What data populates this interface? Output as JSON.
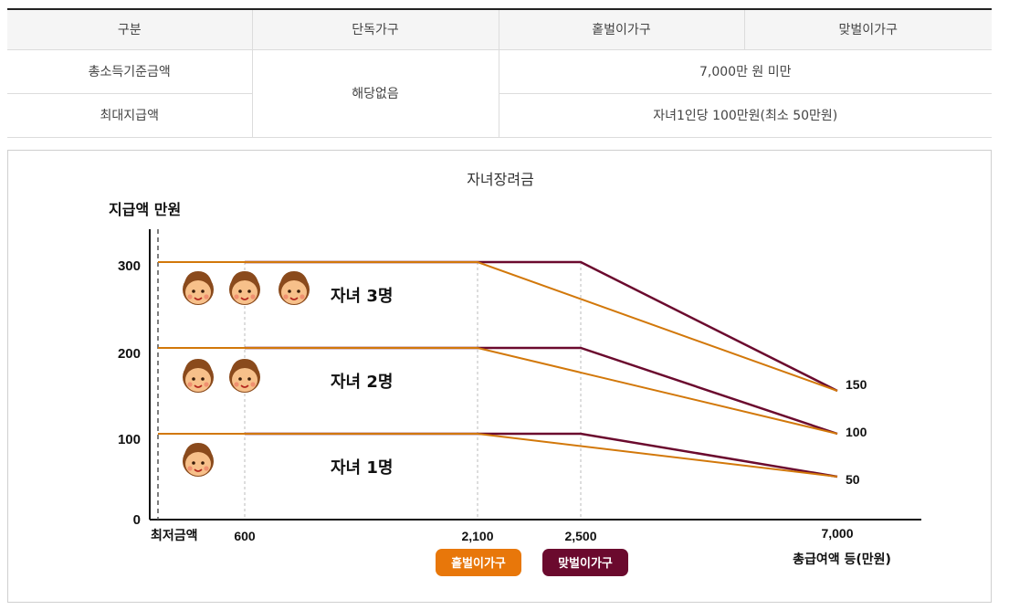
{
  "table": {
    "headers": [
      "구분",
      "단독가구",
      "홑벌이가구",
      "맞벌이가구"
    ],
    "rows": [
      {
        "label": "총소득기준금액",
        "single": "해당없음",
        "value": "7,000만 원 미만"
      },
      {
        "label": "최대지급액",
        "value": "자녀1인당 100만원(최소 50만원)"
      }
    ]
  },
  "chart_data": {
    "type": "line",
    "title": "자녀장려금",
    "ylabel": "지급액 만원",
    "xlabel": "총급여액 등(만원)",
    "y_ticks": [
      "0",
      "100",
      "200",
      "300"
    ],
    "x_ticks": [
      "최저금액",
      "600",
      "2,100",
      "2,500",
      "7,000"
    ],
    "right_ticks": [
      "150",
      "100",
      "50"
    ],
    "legend": [
      "홑벌이가구",
      "맞벌이가구"
    ],
    "tier_labels": [
      "자녀 3명",
      "자녀 2명",
      "자녀 1명"
    ],
    "series": [
      {
        "name": "홑벌이가구",
        "color": "#d2780a",
        "points": [
          {
            "tier": "자녀 3명",
            "x": [
              0,
              2100,
              7000
            ],
            "y": [
              300,
              300,
              150
            ]
          },
          {
            "tier": "자녀 2명",
            "x": [
              0,
              2100,
              7000
            ],
            "y": [
              200,
              200,
              100
            ]
          },
          {
            "tier": "자녀 1명",
            "x": [
              0,
              2100,
              7000
            ],
            "y": [
              100,
              100,
              50
            ]
          }
        ]
      },
      {
        "name": "맞벌이가구",
        "color": "#6b0a2e",
        "points": [
          {
            "tier": "자녀 3명",
            "x": [
              600,
              2500,
              7000
            ],
            "y": [
              300,
              300,
              150
            ]
          },
          {
            "tier": "자녀 2명",
            "x": [
              600,
              2500,
              7000
            ],
            "y": [
              200,
              200,
              100
            ]
          },
          {
            "tier": "자녀 1명",
            "x": [
              600,
              2500,
              7000
            ],
            "y": [
              100,
              100,
              50
            ]
          }
        ]
      }
    ],
    "colors": {
      "single_earner": "#d2780a",
      "dual_earner": "#6b0a2e",
      "legend_single": "#e8770a",
      "legend_dual": "#6b0a2e"
    },
    "icons": [
      "child-face-icon"
    ]
  }
}
